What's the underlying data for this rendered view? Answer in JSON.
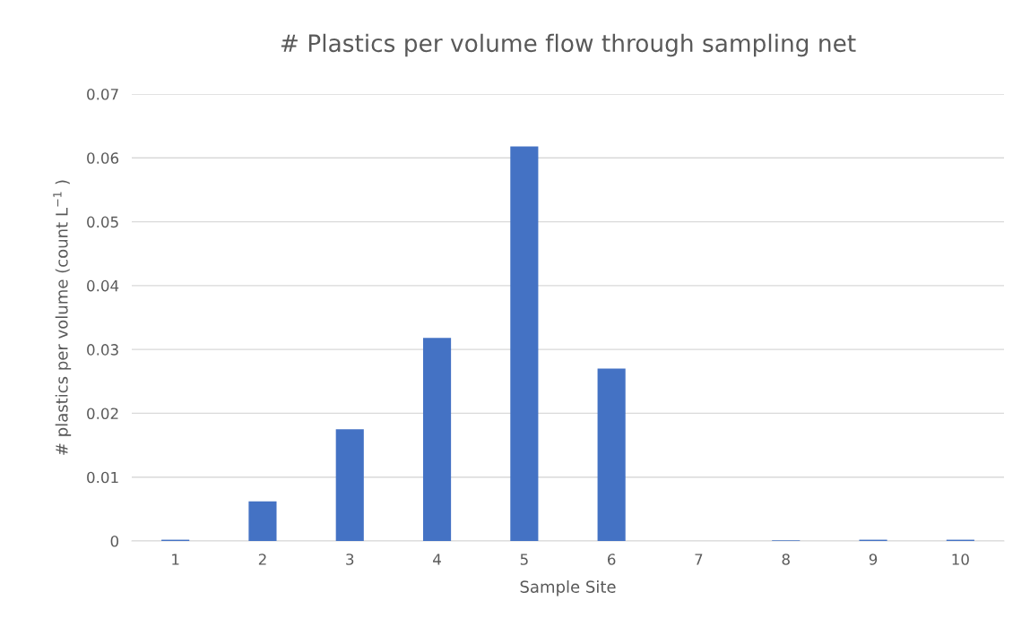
{
  "chart_data": {
    "type": "bar",
    "title": "# Plastics per volume flow through sampling net",
    "xlabel": "Sample Site",
    "ylabel": "# plastics per volume (count L$^{−1}$ )",
    "categories": [
      "1",
      "2",
      "3",
      "4",
      "5",
      "6",
      "7",
      "8",
      "9",
      "10"
    ],
    "values": [
      0.0002,
      0.0062,
      0.0175,
      0.0318,
      0.0618,
      0.027,
      0,
      0.0001,
      0.0002,
      0.0002
    ],
    "color": "#4472c4",
    "ylim": [
      0,
      0.07
    ],
    "yticks": [
      {
        "value": 0,
        "label": "0"
      },
      0.01,
      0.02,
      0.03,
      0.04,
      0.05,
      0.06,
      0.07
    ],
    "grid": "y"
  }
}
